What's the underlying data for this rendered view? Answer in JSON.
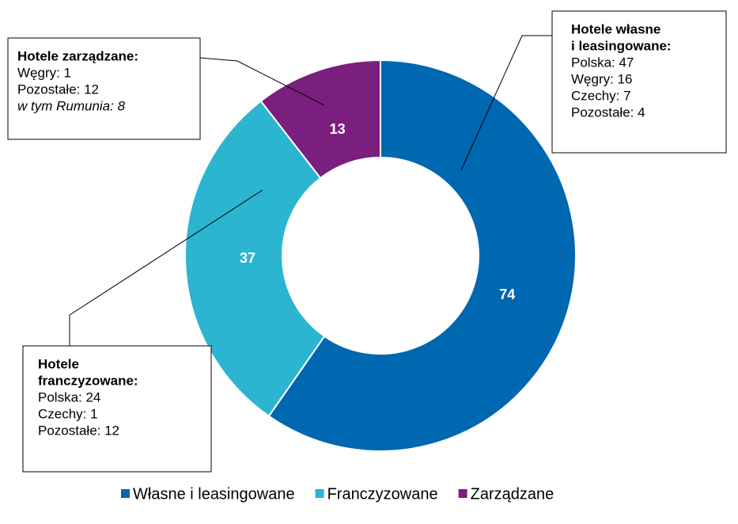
{
  "chart_data": {
    "type": "donut",
    "categories": [
      "Własne i leasingowane",
      "Franczyzowane",
      "Zarządzane"
    ],
    "values": [
      74,
      37,
      13
    ],
    "colors": [
      "#0067b1",
      "#2bb5d0",
      "#7a1f7e"
    ],
    "annotations": [
      {
        "title_lines": [
          "Hotele zarządzane:"
        ],
        "lines": [
          "Węgry: 1",
          "Pozostałe: 12",
          "w tym Rumunia: 8"
        ]
      },
      {
        "title_lines": [
          "Hotele własne",
          "i leasingowane:"
        ],
        "lines": [
          "Polska: 47",
          "Węgry: 16",
          "Czechy: 7",
          "Pozostałe: 4"
        ]
      },
      {
        "title_lines": [
          "Hotele",
          "franczyzowane:"
        ],
        "lines": [
          "Polska: 24",
          "Czechy: 1",
          "Pozostałe: 12"
        ]
      }
    ]
  }
}
